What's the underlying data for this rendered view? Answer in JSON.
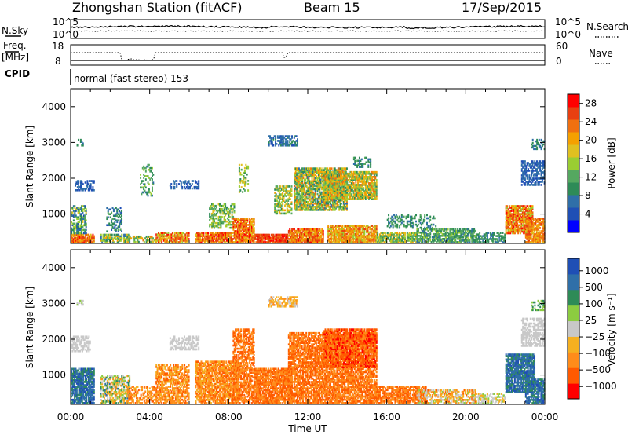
{
  "header": {
    "station": "Zhongshan Station (fitACF)",
    "beam": "Beam 15",
    "date": "17/Sep/2015"
  },
  "noise_panel": {
    "left_label": "N.Sky",
    "left_ticks": [
      "10^5",
      "10^0"
    ],
    "right_label": "N.Search",
    "right_ticks": [
      "10^5",
      "10^0"
    ]
  },
  "freq_panel": {
    "left_label_1": "Freq.",
    "left_label_2": "[MHz]",
    "left_ticks": [
      "18",
      "8"
    ],
    "right_label": "Nave",
    "right_ticks": [
      "60",
      "0"
    ]
  },
  "cpid": {
    "label": "CPID",
    "mode": "normal (fast stereo) 153"
  },
  "colors": {
    "power": [
      "#0000ff",
      "#1f4fb5",
      "#2f6fa8",
      "#2e8b57",
      "#55a860",
      "#9acd32",
      "#e0c020",
      "#f5a000",
      "#f07010",
      "#e84010",
      "#ff0000"
    ],
    "velocity": [
      "#ff0000",
      "#ff5a00",
      "#ff8c1a",
      "#f5b020",
      "#c8c8c8",
      "#8ccc40",
      "#2e8b57",
      "#2f6fa8",
      "#1f4fb5"
    ]
  },
  "chart_data": [
    {
      "type": "heatmap",
      "ylabel": "Slant Range [km]",
      "xlabel": "Time UT",
      "x_ticks": [
        "00:00",
        "04:00",
        "08:00",
        "12:00",
        "16:00",
        "20:00",
        "00:00"
      ],
      "y_ticks": [
        "1000",
        "2000",
        "3000",
        "4000"
      ],
      "xlim": [
        0,
        24
      ],
      "ylim": [
        180,
        4500
      ],
      "colorbar": {
        "label": "Power [dB]",
        "ticks": [
          "4",
          "8",
          "12",
          "16",
          "20",
          "24",
          "28"
        ],
        "range": [
          0,
          30
        ]
      }
    },
    {
      "type": "heatmap",
      "ylabel": "Slant Range [km]",
      "xlabel": "Time UT",
      "x_ticks": [
        "00:00",
        "04:00",
        "08:00",
        "12:00",
        "16:00",
        "20:00",
        "00:00"
      ],
      "y_ticks": [
        "1000",
        "2000",
        "3000",
        "4000"
      ],
      "xlim": [
        0,
        24
      ],
      "ylim": [
        180,
        4500
      ],
      "colorbar": {
        "label": "Velocity [m s⁻¹]",
        "ticks": [
          "1000",
          "500",
          "100",
          "25",
          "−25",
          "−100",
          "−500",
          "−1000"
        ]
      }
    }
  ]
}
